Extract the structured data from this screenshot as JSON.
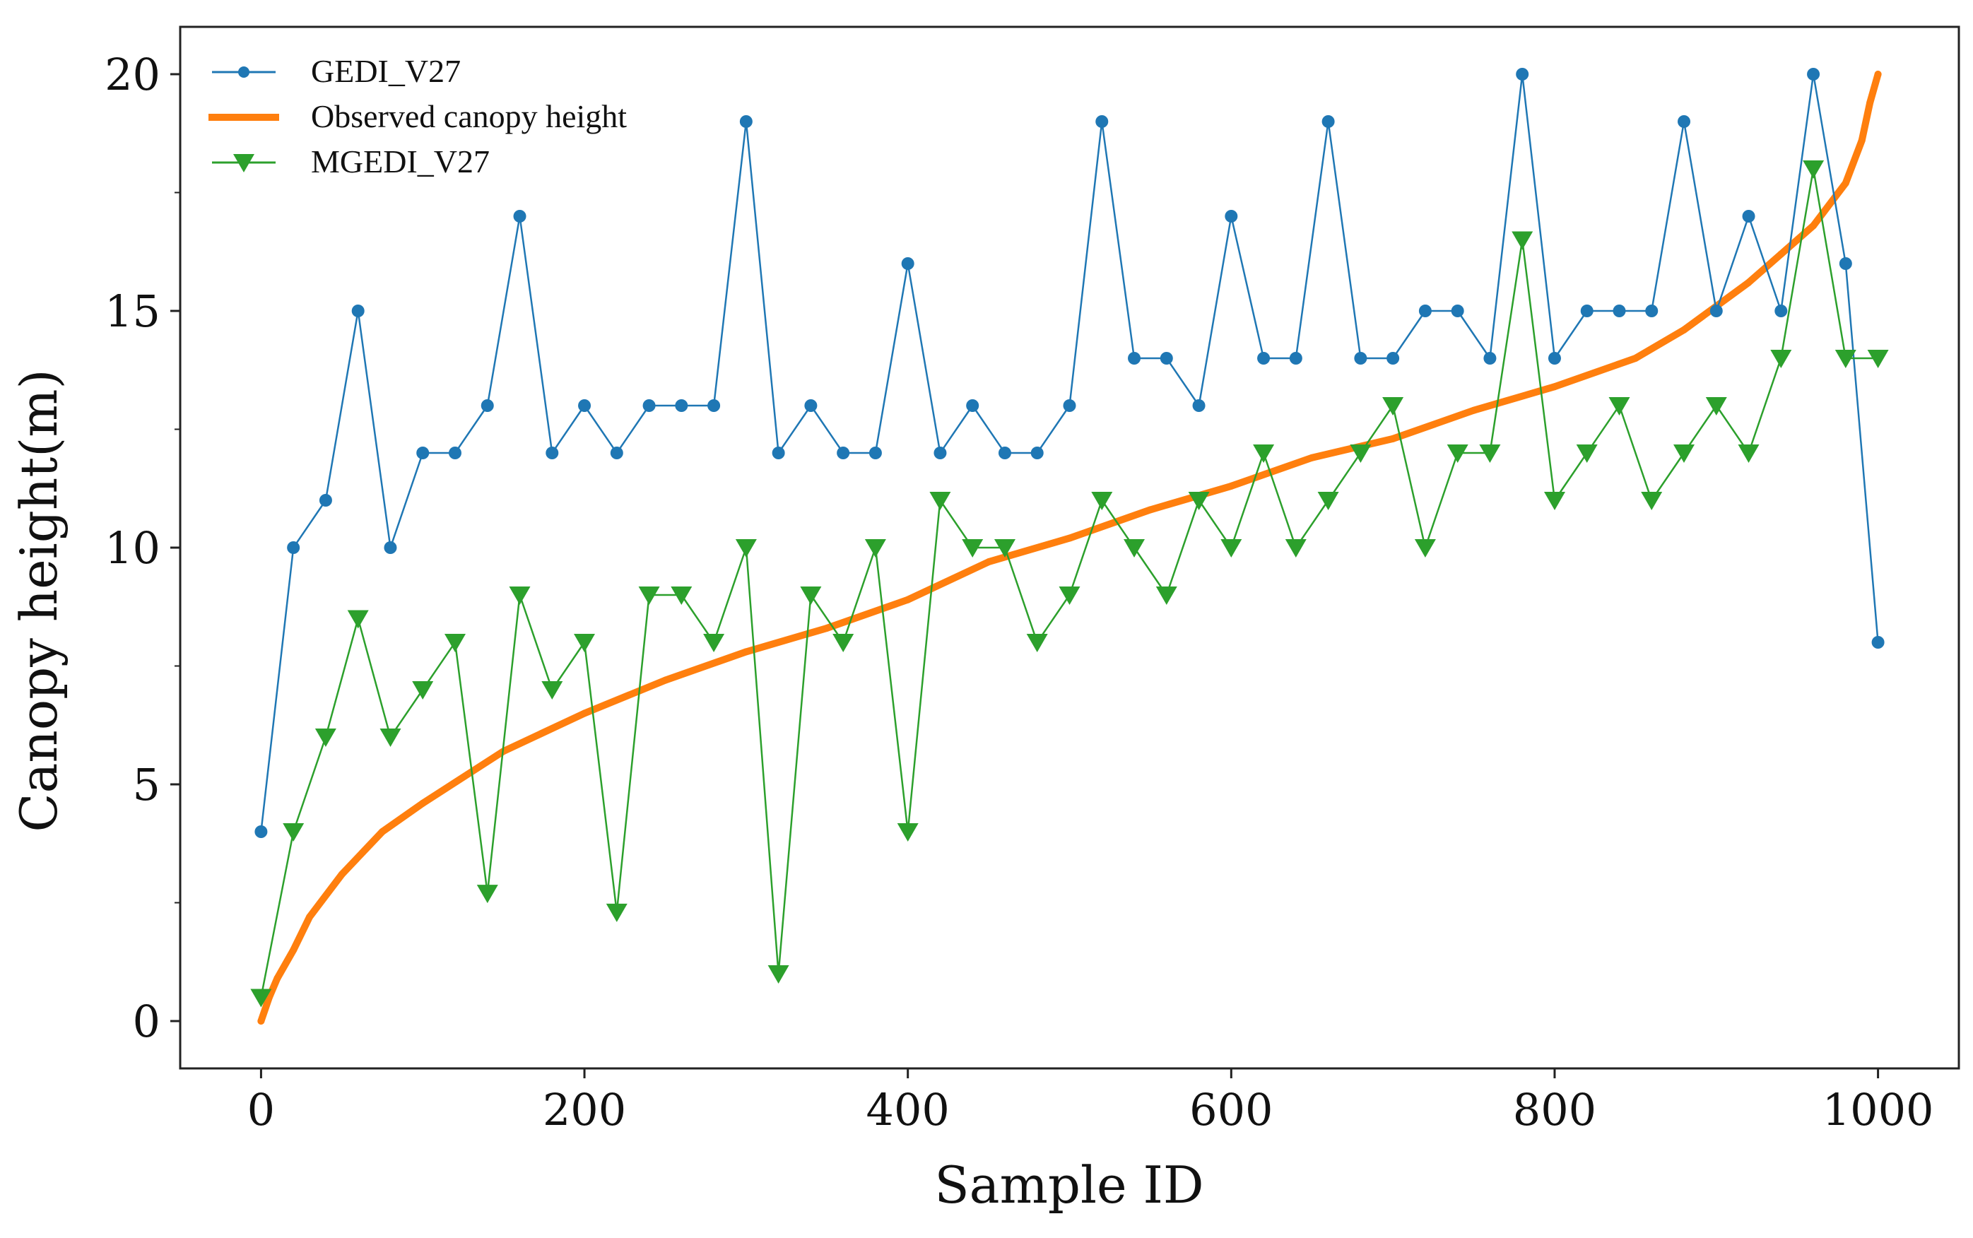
{
  "chart_data": {
    "type": "line",
    "title": "",
    "xlabel": "Sample ID",
    "ylabel": "Canopy height(m)",
    "xlim": [
      -50,
      1050
    ],
    "ylim": [
      -1,
      21
    ],
    "xticks": [
      0,
      200,
      400,
      600,
      800,
      1000
    ],
    "yticks": [
      0,
      5,
      10,
      15,
      20
    ],
    "legend_position": "top-left",
    "colors": {
      "gedi": "#1f77b4",
      "observed": "#ff7f0e",
      "mgedi": "#2ca02c"
    },
    "series": [
      {
        "name": "GEDI_V27",
        "style": "line-circle",
        "x": [
          0,
          20,
          40,
          60,
          80,
          100,
          120,
          140,
          160,
          180,
          200,
          220,
          240,
          260,
          280,
          300,
          320,
          340,
          360,
          380,
          400,
          420,
          440,
          460,
          480,
          500,
          520,
          540,
          560,
          580,
          600,
          620,
          640,
          660,
          680,
          700,
          720,
          740,
          760,
          780,
          800,
          820,
          840,
          860,
          880,
          900,
          920,
          940,
          960,
          980,
          1000
        ],
        "values": [
          4,
          10,
          11,
          15,
          10,
          12,
          12,
          13,
          17,
          12,
          13,
          12,
          13,
          13,
          13,
          19,
          12,
          13,
          12,
          12,
          16,
          12,
          13,
          12,
          12,
          13,
          19,
          14,
          14,
          13,
          17,
          14,
          14,
          19,
          14,
          14,
          15,
          15,
          14,
          20,
          14,
          15,
          15,
          15,
          19,
          15,
          17,
          15,
          20,
          16,
          8
        ]
      },
      {
        "name": "Observed canopy height",
        "style": "thick-line",
        "x": [
          0,
          5,
          10,
          20,
          30,
          50,
          75,
          100,
          150,
          200,
          250,
          300,
          350,
          400,
          450,
          500,
          550,
          600,
          650,
          700,
          750,
          800,
          850,
          880,
          900,
          920,
          940,
          960,
          980,
          990,
          995,
          1000
        ],
        "values": [
          0,
          0.5,
          0.9,
          1.5,
          2.2,
          3.1,
          4,
          4.6,
          5.7,
          6.5,
          7.2,
          7.8,
          8.3,
          8.9,
          9.7,
          10.2,
          10.8,
          11.3,
          11.9,
          12.3,
          12.9,
          13.4,
          14,
          14.6,
          15.1,
          15.6,
          16.2,
          16.8,
          17.7,
          18.6,
          19.4,
          20
        ]
      },
      {
        "name": "MGEDI_V27",
        "style": "line-triangle",
        "x": [
          0,
          20,
          40,
          60,
          80,
          100,
          120,
          140,
          160,
          180,
          200,
          220,
          240,
          260,
          280,
          300,
          320,
          340,
          360,
          380,
          400,
          420,
          440,
          460,
          480,
          500,
          520,
          540,
          560,
          580,
          600,
          620,
          640,
          660,
          680,
          700,
          720,
          740,
          760,
          780,
          800,
          820,
          840,
          860,
          880,
          900,
          920,
          940,
          960,
          980,
          1000
        ],
        "values": [
          0.5,
          4,
          6,
          8.5,
          6,
          7,
          8,
          2.7,
          9,
          7,
          8,
          2.3,
          9,
          9,
          8,
          10,
          1,
          9,
          8,
          10,
          4,
          11,
          10,
          10,
          8,
          9,
          11,
          10,
          9,
          11,
          10,
          12,
          10,
          11,
          12,
          13,
          10,
          12,
          12,
          16.5,
          11,
          12,
          13,
          11,
          12,
          13,
          12,
          14,
          18,
          14,
          14
        ]
      }
    ]
  }
}
